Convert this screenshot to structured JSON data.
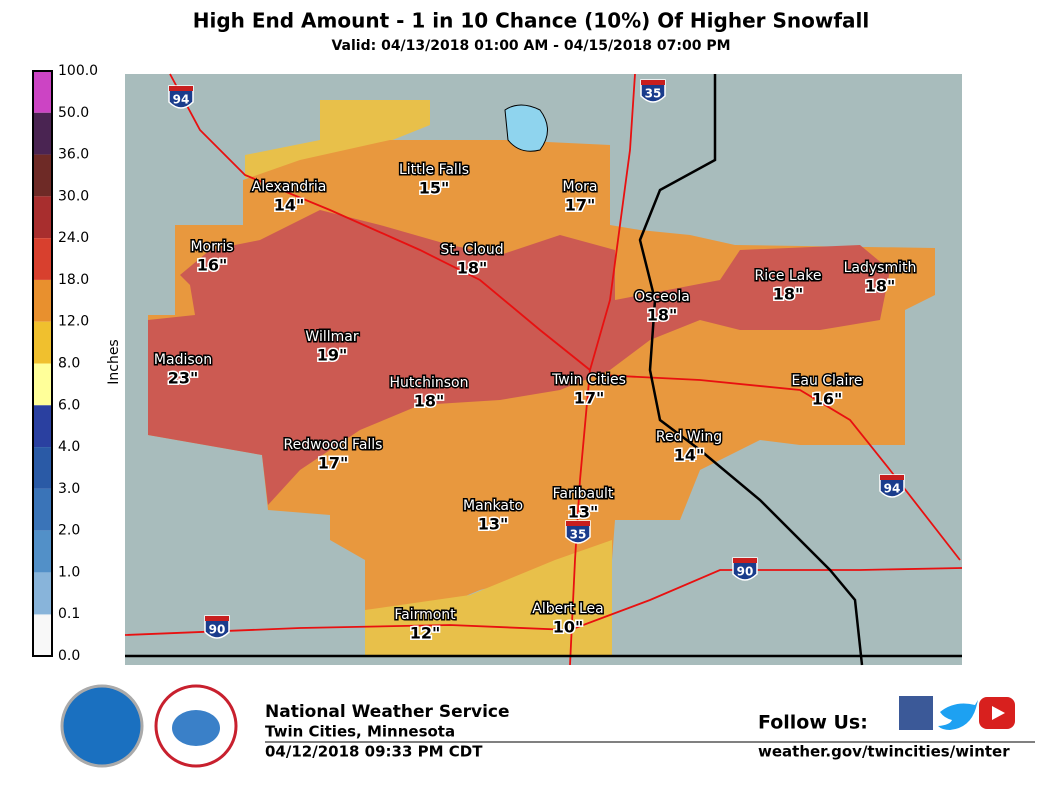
{
  "title": "High End Amount - 1 in 10 Chance (10%) Of Higher Snowfall",
  "subtitle": "Valid: 04/13/2018 01:00 AM - 04/15/2018 07:00 PM",
  "legend": {
    "axis_label": "Inches",
    "labels": [
      "100.0",
      "50.0",
      "36.0",
      "30.0",
      "24.0",
      "18.0",
      "12.0",
      "8.0",
      "6.0",
      "4.0",
      "3.0",
      "2.0",
      "1.0",
      "0.1",
      "0.0"
    ],
    "colors": [
      "#cc44c4",
      "#4a2452",
      "#6e2a26",
      "#a82e2e",
      "#d8402e",
      "#e8902e",
      "#f0c02e",
      "#ffff99",
      "#2a40a0",
      "#2a5aa6",
      "#3a74b8",
      "#5290c8",
      "#88b4da",
      "#c8dcec"
    ],
    "bottom_color": "#f8f8f8"
  },
  "map": {
    "cities": [
      {
        "name": "Alexandria",
        "amount": "14\""
      },
      {
        "name": "Little Falls",
        "amount": "15\""
      },
      {
        "name": "Mora",
        "amount": "17\""
      },
      {
        "name": "Morris",
        "amount": "16\""
      },
      {
        "name": "St. Cloud",
        "amount": "18\""
      },
      {
        "name": "Osceola",
        "amount": "18\""
      },
      {
        "name": "Rice Lake",
        "amount": "18\""
      },
      {
        "name": "Ladysmith",
        "amount": "18\""
      },
      {
        "name": "Madison",
        "amount": "23\""
      },
      {
        "name": "Willmar",
        "amount": "19\""
      },
      {
        "name": "Twin Cities",
        "amount": "17\""
      },
      {
        "name": "Hutchinson",
        "amount": "18\""
      },
      {
        "name": "Eau Claire",
        "amount": "16\""
      },
      {
        "name": "Redwood Falls",
        "amount": "17\""
      },
      {
        "name": "Red Wing",
        "amount": "14\""
      },
      {
        "name": "Faribault",
        "amount": "13\""
      },
      {
        "name": "Mankato",
        "amount": "13\""
      },
      {
        "name": "Fairmont",
        "amount": "12\""
      },
      {
        "name": "Albert Lea",
        "amount": "10\""
      }
    ],
    "interstates": [
      "94",
      "35",
      "94",
      "35",
      "90",
      "90"
    ]
  },
  "footer": {
    "agency": "National Weather Service",
    "office": "Twin Cities, Minnesota",
    "issued": "04/12/2018 09:33 PM CDT",
    "follow": "Follow Us:",
    "url": "weather.gov/twincities/winter"
  }
}
